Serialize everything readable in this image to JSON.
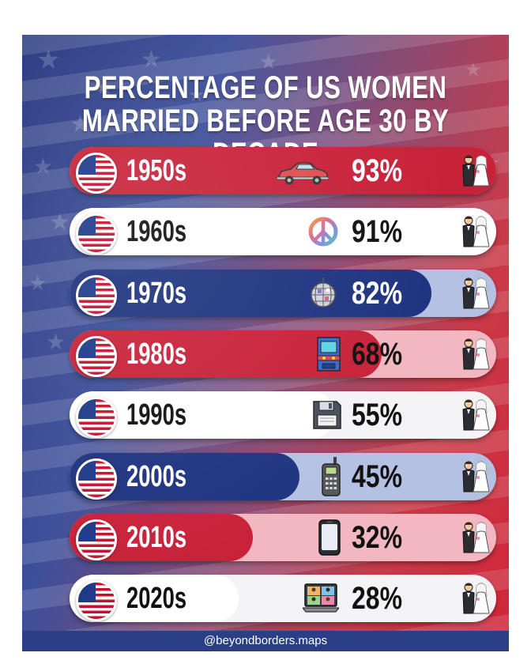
{
  "title_lines": [
    "PERCENTAGE OF US WOMEN",
    "MARRIED BEFORE AGE 30 BY DECADE"
  ],
  "handle": "@beyondborders.maps",
  "icons": [
    "us-flag-icon",
    "car-icon",
    "peace-sign-icon",
    "disco-ball-icon",
    "arcade-cabinet-icon",
    "floppy-disk-icon",
    "brick-phone-icon",
    "smartphone-icon",
    "video-call-icon",
    "wedding-couple-icon"
  ],
  "colors": {
    "red": "#c8223a",
    "navy": "#1f3480",
    "white": "#ffffff",
    "pale_pink": "#f2b7c0",
    "pale_blue": "#b4c1e2",
    "text_dark": "#111111"
  },
  "chart_data": {
    "type": "bar",
    "title": "PERCENTAGE OF US WOMEN MARRIED BEFORE AGE 30 BY DECADE",
    "categories": [
      "1950s",
      "1960s",
      "1970s",
      "1980s",
      "1990s",
      "2000s",
      "2010s",
      "2020s"
    ],
    "values": [
      93,
      91,
      82,
      68,
      55,
      45,
      32,
      28
    ],
    "value_labels": [
      "93%",
      "91%",
      "82%",
      "68%",
      "55%",
      "45%",
      "32%",
      "28%"
    ],
    "ylim": [
      0,
      100
    ],
    "legend": "none",
    "grid": false
  }
}
